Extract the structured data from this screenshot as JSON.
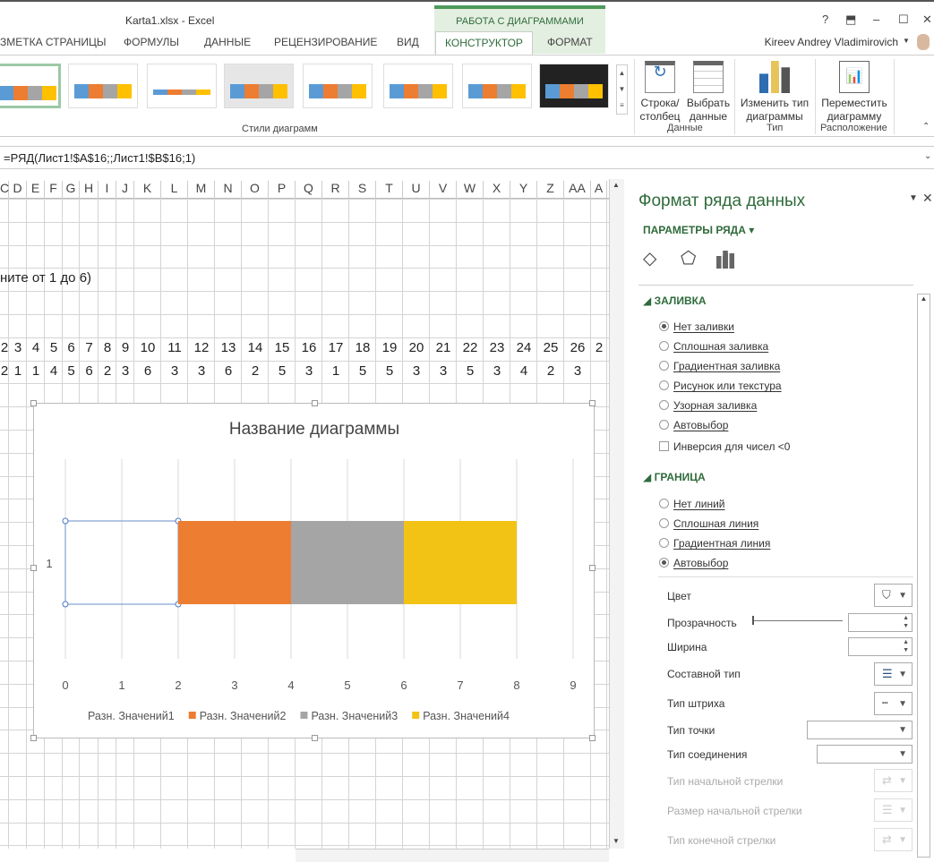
{
  "window": {
    "title": "Karta1.xlsx - Excel",
    "context_group": "РАБОТА С ДИАГРАММАМИ",
    "user": "Kireev Andrey Vladimirovich"
  },
  "tabs": [
    {
      "label": "ЗМЕТКА СТРАНИЦЫ"
    },
    {
      "label": "ФОРМУЛЫ"
    },
    {
      "label": "ДАННЫЕ"
    },
    {
      "label": "РЕЦЕНЗИРОВАНИЕ"
    },
    {
      "label": "ВИД"
    },
    {
      "label": "КОНСТРУКТОР",
      "active": true
    },
    {
      "label": "ФОРМАТ"
    }
  ],
  "ribbon": {
    "gallery_label": "Стили диаграмм",
    "buttons": [
      {
        "label1": "Строка/",
        "label2": "столбец"
      },
      {
        "label1": "Выбрать",
        "label2": "данные"
      },
      {
        "label1": "Изменить тип",
        "label2": "диаграммы"
      },
      {
        "label1": "Переместить",
        "label2": "диаграмму"
      }
    ],
    "groups": [
      "Данные",
      "Тип",
      "Расположение"
    ]
  },
  "formula": "=РЯД(Лист1!$A$16;;Лист1!$B$16;1)",
  "columns": [
    "C",
    "D",
    "E",
    "F",
    "G",
    "H",
    "I",
    "J",
    "K",
    "L",
    "M",
    "N",
    "O",
    "P",
    "Q",
    "R",
    "S",
    "T",
    "U",
    "V",
    "W",
    "X",
    "Y",
    "Z",
    "AA",
    "A"
  ],
  "sheet": {
    "instruction_text": "ните от 1 до 6)",
    "row_numbers": [
      "2",
      "3",
      "4",
      "5",
      "6",
      "7",
      "8",
      "9",
      "10",
      "11",
      "12",
      "13",
      "14",
      "15",
      "16",
      "17",
      "18",
      "19",
      "20",
      "21",
      "22",
      "23",
      "24",
      "25",
      "26",
      "2"
    ],
    "row_values": [
      "2",
      "1",
      "1",
      "4",
      "5",
      "6",
      "2",
      "3",
      "6",
      "3",
      "3",
      "6",
      "2",
      "5",
      "3",
      "1",
      "5",
      "5",
      "3",
      "3",
      "5",
      "3",
      "4",
      "2",
      "3",
      ""
    ]
  },
  "chart_data": {
    "type": "bar",
    "orientation": "horizontal",
    "stacked": true,
    "title": "Название диаграммы",
    "categories": [
      "1"
    ],
    "xlim": [
      0,
      9
    ],
    "xticks": [
      "0",
      "1",
      "2",
      "3",
      "4",
      "5",
      "6",
      "7",
      "8",
      "9"
    ],
    "grid": true,
    "legend": "bottom",
    "series": [
      {
        "name": "Разн. Значений1",
        "values": [
          2
        ],
        "color": "none",
        "selected": true
      },
      {
        "name": "Разн. Значений2",
        "values": [
          2
        ],
        "color": "#ED7D31"
      },
      {
        "name": "Разн. Значений3",
        "values": [
          2
        ],
        "color": "#A5A5A5"
      },
      {
        "name": "Разн. Значений4",
        "values": [
          2
        ],
        "color": "#F2C314"
      }
    ]
  },
  "pane": {
    "title": "Формат ряда данных",
    "subtitle": "ПАРАМЕТРЫ РЯДА",
    "fill_section": "ЗАЛИВКА",
    "fill_options": [
      {
        "label": "Нет заливки",
        "checked": true
      },
      {
        "label": "Сплошная заливка"
      },
      {
        "label": "Градиентная заливка"
      },
      {
        "label": "Рисунок или текстура"
      },
      {
        "label": "Узорная заливка"
      },
      {
        "label": "Автовыбор"
      }
    ],
    "invert_label": "Инверсия для чисел <0",
    "border_section": "ГРАНИЦА",
    "border_options": [
      {
        "label": "Нет линий"
      },
      {
        "label": "Сплошная линия"
      },
      {
        "label": "Градиентная линия"
      },
      {
        "label": "Автовыбор",
        "checked": true
      }
    ],
    "props": {
      "color": "Цвет",
      "transparency": "Прозрачность",
      "width": "Ширина",
      "compound": "Составной тип",
      "dash": "Тип штриха",
      "cap": "Тип точки",
      "join": "Тип соединения",
      "begin_arrow": "Тип начальной стрелки",
      "begin_size": "Размер начальной стрелки",
      "end_arrow": "Тип конечной стрелки"
    }
  },
  "colors": {
    "accent": "#2f6b3b",
    "context": "#e3efe0"
  }
}
